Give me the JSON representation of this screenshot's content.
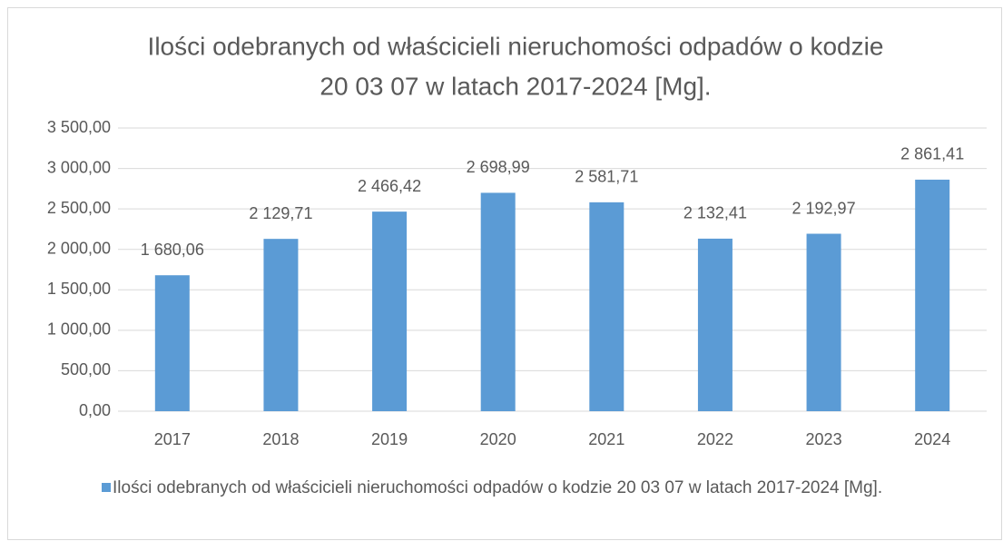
{
  "chart_data": {
    "type": "bar",
    "title": [
      "Ilości odebranych od właścicieli nieruchomości odpadów o kodzie",
      "20 03 07 w latach 2017-2024 [Mg]."
    ],
    "categories": [
      "2017",
      "2018",
      "2019",
      "2020",
      "2021",
      "2022",
      "2023",
      "2024"
    ],
    "series": [
      {
        "name": "Ilości odebranych od właścicieli nieruchomości odpadów o kodzie 20 03 07 w latach 2017-2024 [Mg].",
        "color": "#5b9bd5",
        "values": [
          1680.06,
          2129.71,
          2466.42,
          2698.99,
          2581.71,
          2132.41,
          2192.97,
          2861.41
        ],
        "value_labels": [
          "1 680,06",
          "2 129,71",
          "2 466,42",
          "2 698,99",
          "2 581,71",
          "2 132,41",
          "2 192,97",
          "2 861,41"
        ]
      }
    ],
    "ylim": [
      0,
      3500
    ],
    "yticks": [
      {
        "value": 0,
        "label": "0,00"
      },
      {
        "value": 500,
        "label": "500,00"
      },
      {
        "value": 1000,
        "label": "1 000,00"
      },
      {
        "value": 1500,
        "label": "1 500,00"
      },
      {
        "value": 2000,
        "label": "2 000,00"
      },
      {
        "value": 2500,
        "label": "2 500,00"
      },
      {
        "value": 3000,
        "label": "3 000,00"
      },
      {
        "value": 3500,
        "label": "3 500,00"
      }
    ],
    "grid": true,
    "legend": "bottom"
  }
}
